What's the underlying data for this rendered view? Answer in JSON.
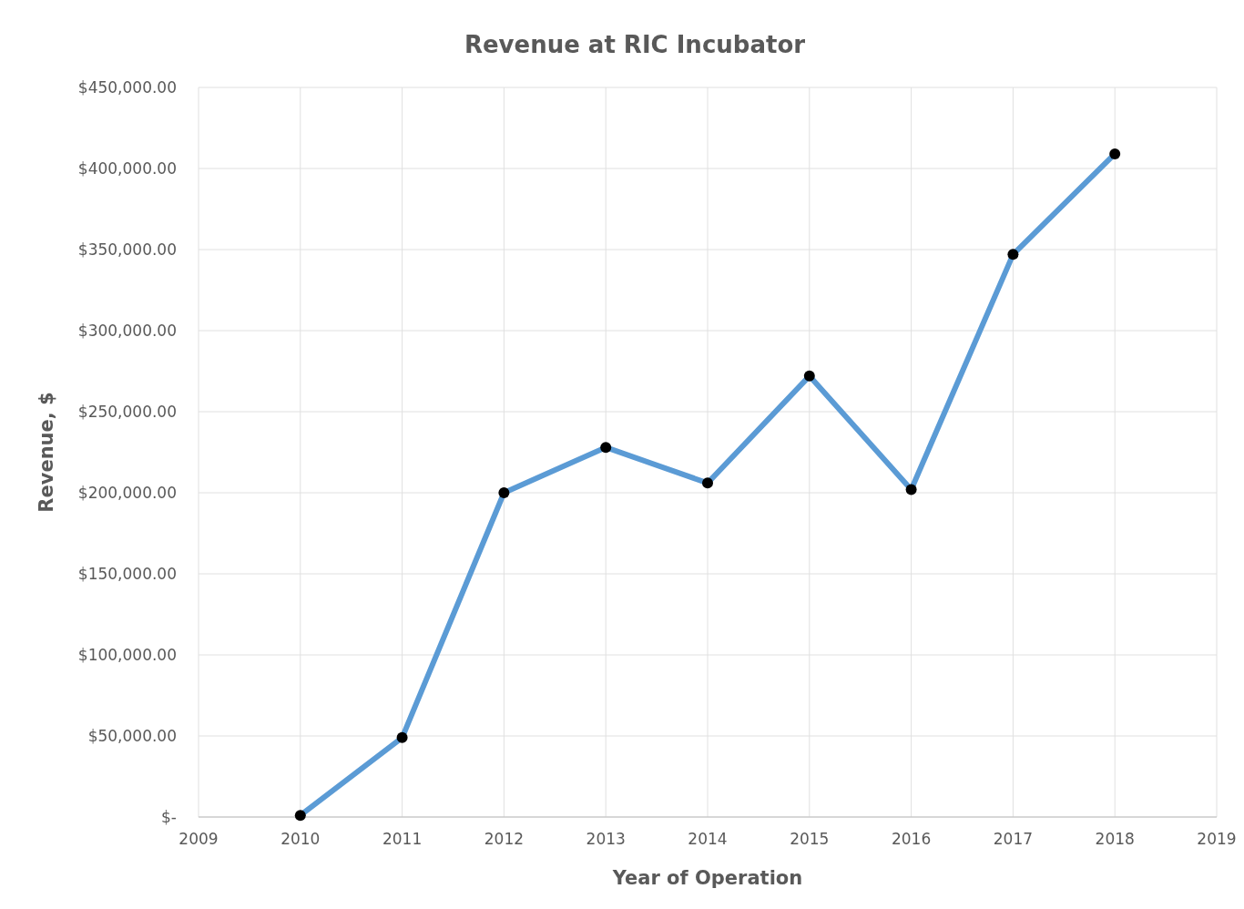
{
  "chart_data": {
    "type": "line",
    "title": "Revenue at RIC Incubator",
    "xlabel": "Year of Operation",
    "ylabel": "Revenue, $",
    "x": [
      2010,
      2011,
      2012,
      2013,
      2014,
      2015,
      2016,
      2017,
      2018
    ],
    "series": [
      {
        "color": "#5b9bd5",
        "values": [
          1000,
          49000,
          200000,
          228000,
          206000,
          272000,
          202000,
          347000,
          409000
        ]
      }
    ],
    "xlim": [
      2009,
      2019
    ],
    "xticks": [
      2009,
      2010,
      2011,
      2012,
      2013,
      2014,
      2015,
      2016,
      2017,
      2018,
      2019
    ],
    "ylim": [
      0,
      450000
    ],
    "yticks": [
      {
        "value": 0,
        "label": "$-"
      },
      {
        "value": 50000,
        "label": "$50,000.00"
      },
      {
        "value": 100000,
        "label": "$100,000.00"
      },
      {
        "value": 150000,
        "label": "$150,000.00"
      },
      {
        "value": 200000,
        "label": "$200,000.00"
      },
      {
        "value": 250000,
        "label": "$250,000.00"
      },
      {
        "value": 300000,
        "label": "$300,000.00"
      },
      {
        "value": 350000,
        "label": "$350,000.00"
      },
      {
        "value": 400000,
        "label": "$400,000.00"
      },
      {
        "value": 450000,
        "label": "$450,000.00"
      }
    ],
    "grid": true,
    "marker": "circle",
    "line_style": "solid"
  }
}
